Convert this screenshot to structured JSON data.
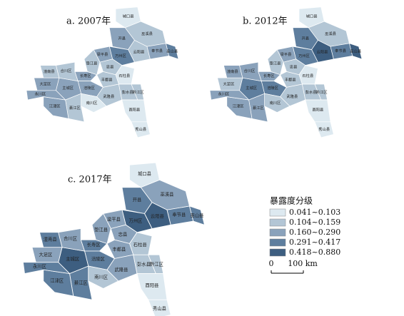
{
  "panels": [
    "a. 2007年",
    "b. 2012年",
    "c. 2017年"
  ],
  "legend": {
    "title": "暴露度分级",
    "items": [
      {
        "label": "0.041~0.103",
        "color": "#dde9f0"
      },
      {
        "label": "0.104~0.159",
        "color": "#b3c6d5"
      },
      {
        "label": "0.160~0.290",
        "color": "#8aa2bb"
      },
      {
        "label": "0.291~0.417",
        "color": "#5e7e9e"
      },
      {
        "label": "0.418~0.880",
        "color": "#3d5e80"
      }
    ]
  },
  "scale_bar": {
    "start": "0",
    "end": "100 km"
  },
  "districts": [
    "城口县",
    "巫溪县",
    "开县",
    "云阳县",
    "奉节县",
    "巫山县",
    "万州区",
    "梁平县",
    "忠县",
    "石柱县",
    "丰都县",
    "垫江县",
    "长寿区",
    "涪陵区",
    "武隆县",
    "彭水县",
    "黔江区",
    "酉阳县",
    "秀山县",
    "南川区",
    "綦江区",
    "江津区",
    "主城区",
    "合川区",
    "潼南县",
    "大足区",
    "永川区"
  ]
}
